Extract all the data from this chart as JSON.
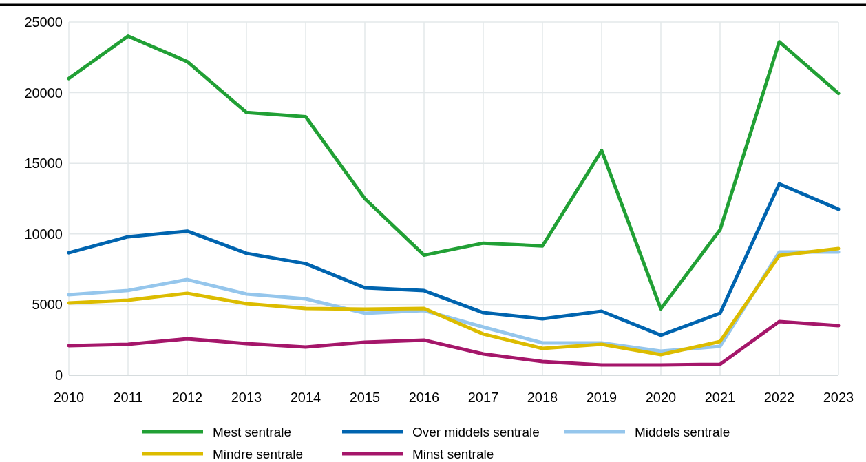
{
  "chart_data": {
    "type": "line",
    "x": [
      2010,
      2011,
      2012,
      2013,
      2014,
      2015,
      2016,
      2017,
      2018,
      2019,
      2020,
      2021,
      2022,
      2023
    ],
    "series": [
      {
        "name": "Mest sentrale",
        "color": "#21a035",
        "values": [
          21000,
          24000,
          22200,
          18600,
          18300,
          12500,
          8500,
          9350,
          9150,
          15900,
          4700,
          10300,
          23600,
          19950
        ]
      },
      {
        "name": "Over middels sentrale",
        "color": "#0064af",
        "values": [
          8670,
          9800,
          10200,
          8630,
          7900,
          6190,
          5990,
          4430,
          4000,
          4530,
          2830,
          4390,
          13550,
          11750
        ]
      },
      {
        "name": "Middels sentrale",
        "color": "#95c6ec",
        "values": [
          5700,
          6000,
          6770,
          5750,
          5410,
          4390,
          4580,
          3410,
          2290,
          2290,
          1710,
          2050,
          8720,
          8720
        ]
      },
      {
        "name": "Mindre sentrale",
        "color": "#dcbc00",
        "values": [
          5120,
          5310,
          5800,
          5070,
          4730,
          4680,
          4730,
          2920,
          1900,
          2190,
          1460,
          2390,
          8480,
          8970
        ]
      },
      {
        "name": "Minst sentrale",
        "color": "#a5166a",
        "values": [
          2100,
          2190,
          2580,
          2240,
          2000,
          2340,
          2490,
          1510,
          970,
          730,
          730,
          780,
          3800,
          3510
        ]
      }
    ],
    "xlim": [
      2010,
      2023
    ],
    "xticks": [
      2010,
      2011,
      2012,
      2013,
      2014,
      2015,
      2016,
      2017,
      2018,
      2019,
      2020,
      2021,
      2022,
      2023
    ],
    "ylim": [
      0,
      25000
    ],
    "yticks": [
      0,
      5000,
      10000,
      15000,
      20000,
      25000
    ],
    "grid": true,
    "legend": "bottom",
    "marker": "none",
    "line_style": "solid"
  }
}
